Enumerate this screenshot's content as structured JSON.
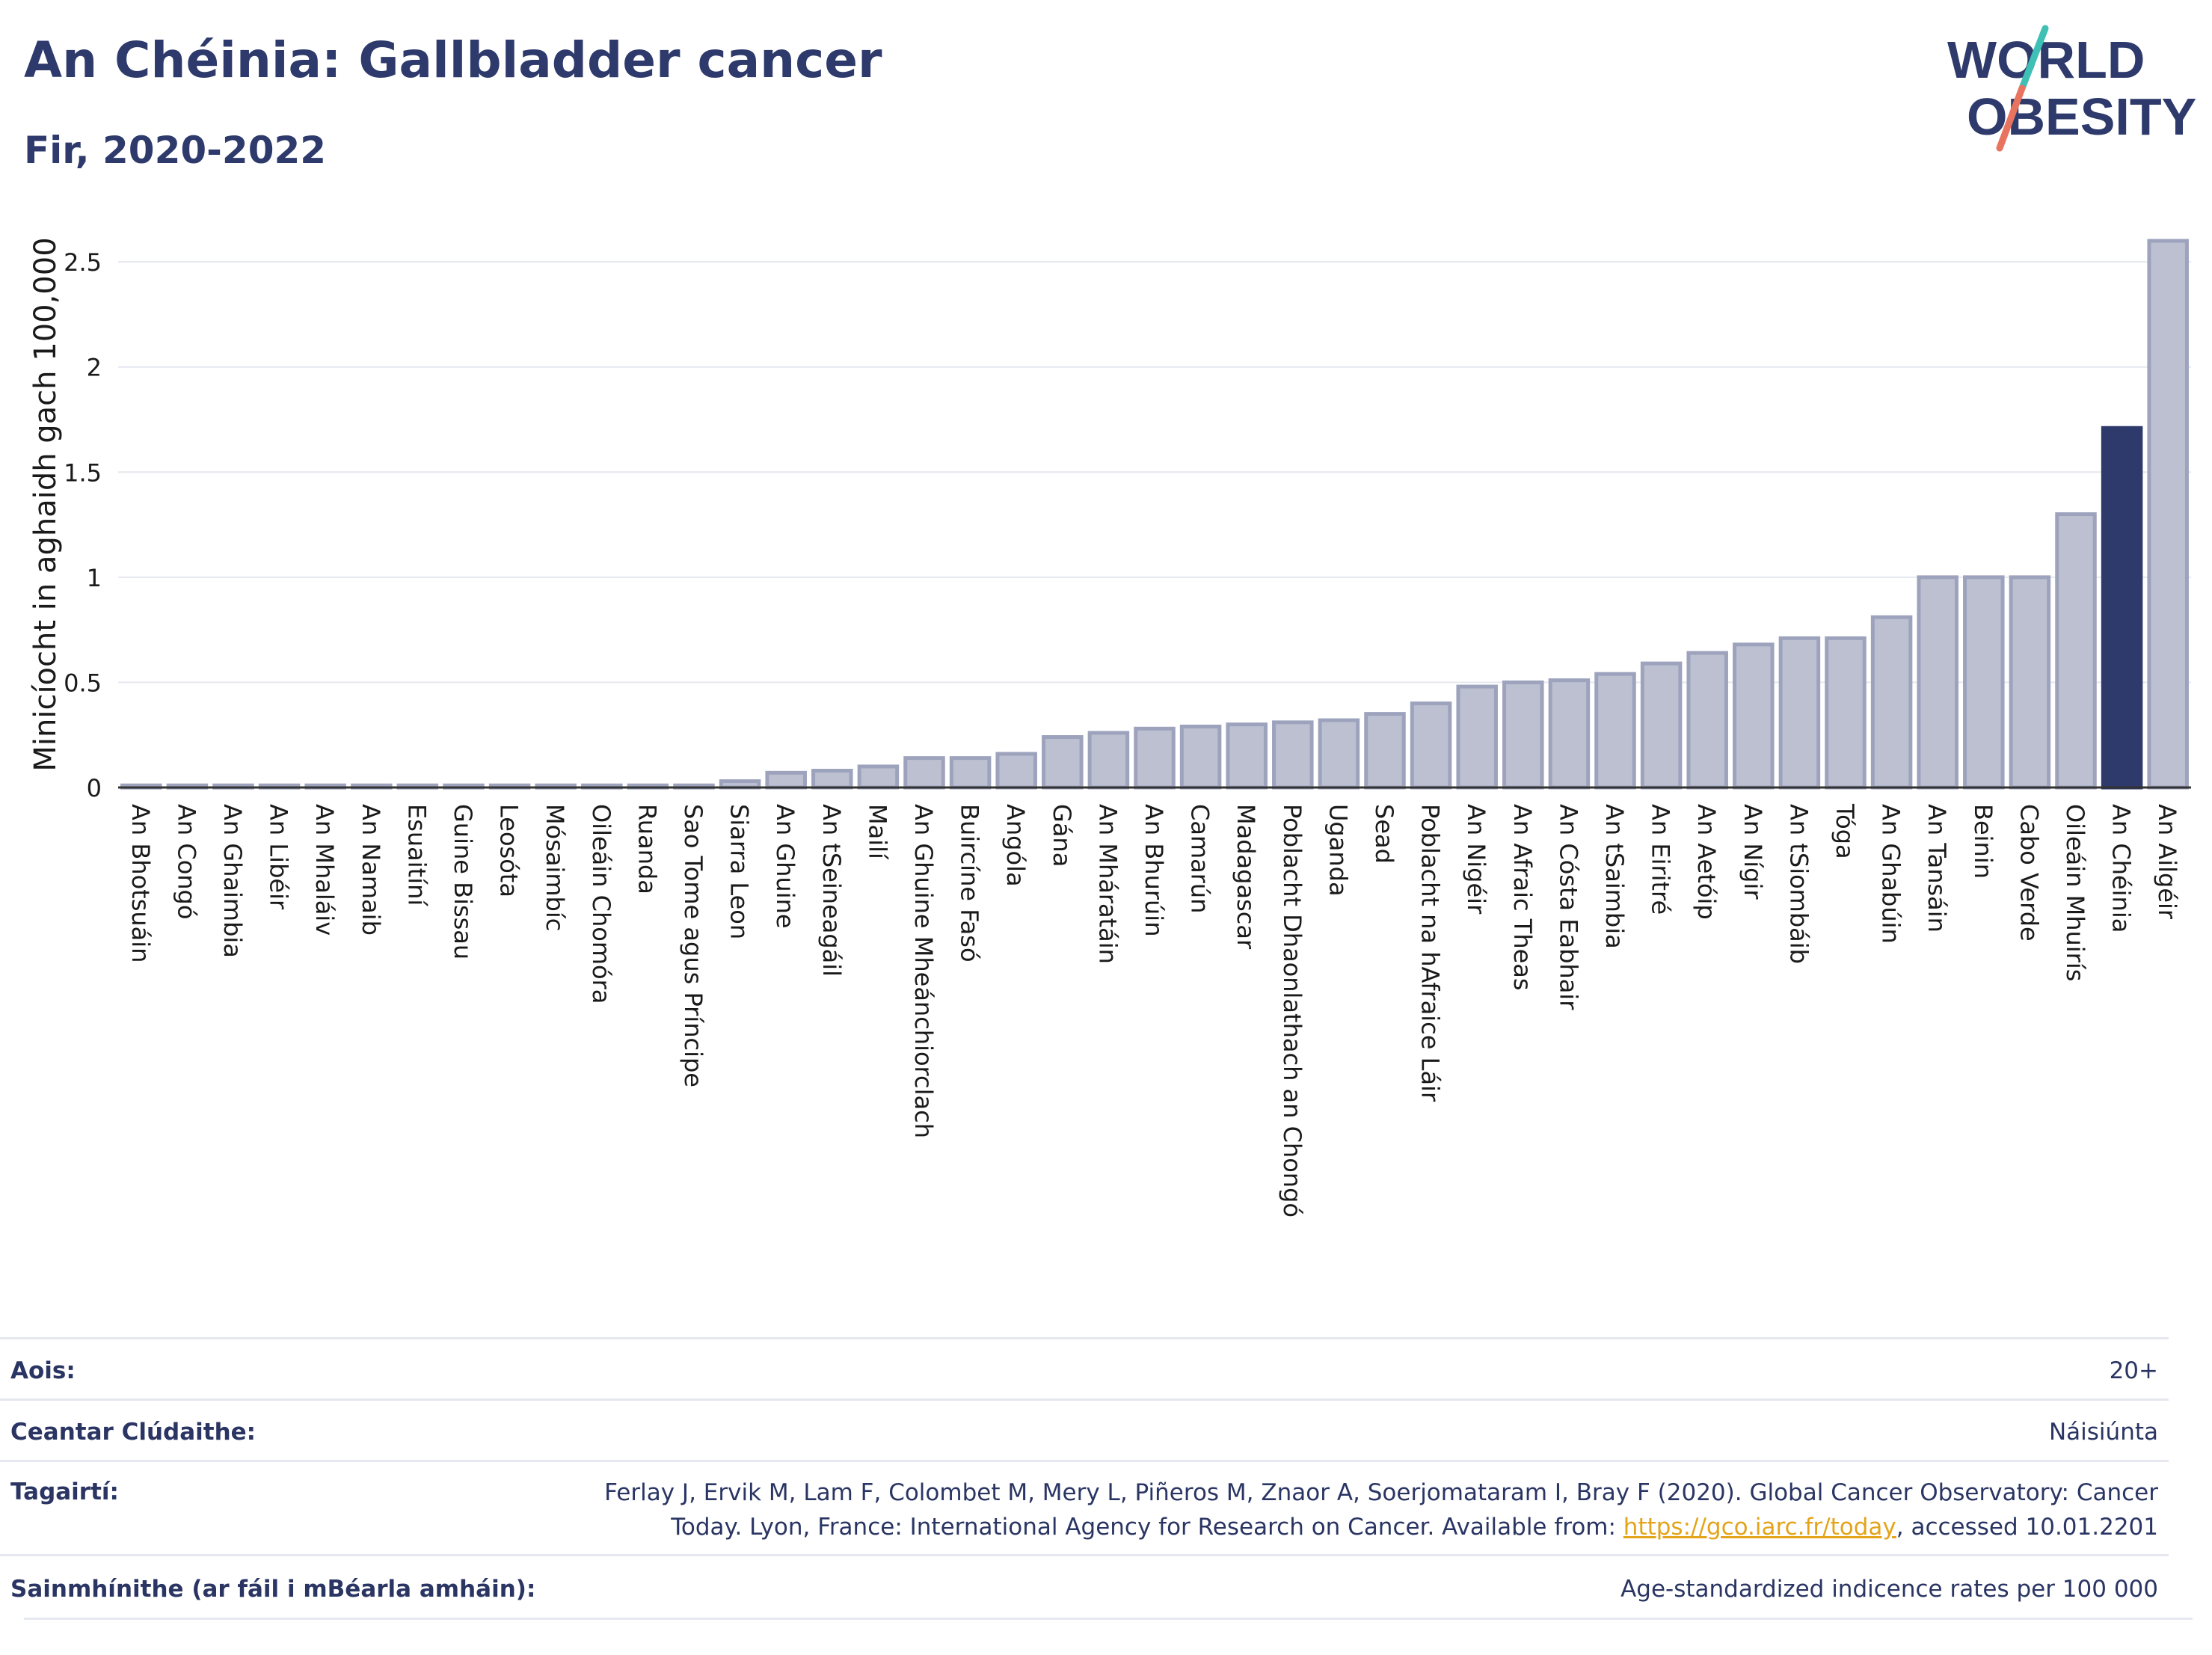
{
  "title": "An Chéinia: Gallbladder cancer",
  "subtitle": "Fir, 2020-2022",
  "logo": {
    "line1": "WORLD",
    "line2": "OBESITY",
    "colors": {
      "text": "#2d3a6b",
      "slash_top": "#3fc0b5",
      "slash_bottom": "#e8735e"
    }
  },
  "colors": {
    "bar_fill": "#bcc0d1",
    "bar_stroke": "#9ea3bd",
    "highlight": "#2d3a6b",
    "grid": "#e6e8f0",
    "axis": "#333333"
  },
  "chart_data": {
    "type": "bar",
    "ylabel": "Minicíocht in aghaidh gach 100,000",
    "xlabel": "",
    "ylim": [
      0,
      2.65
    ],
    "yticks": [
      0,
      0.5,
      1,
      1.5,
      2,
      2.5
    ],
    "ytick_labels": [
      "0",
      "0.5",
      "1",
      "1.5",
      "2",
      "2.5"
    ],
    "grid": true,
    "highlight": "An Chéinia",
    "categories": [
      "An Bhotsuáin",
      "An Congó",
      "An Ghaimbia",
      "An Libéir",
      "An Mhaláiv",
      "An Namaib",
      "Esuaitíní",
      "Guine Bissau",
      "Leosóta",
      "Mósaimbíc",
      "Oileáin Chomóra",
      "Ruanda",
      "Sao Tome agus Príncipe",
      "Siarra Leon",
      "An Ghuine",
      "An tSeineagáil",
      "Mailí",
      "An Ghuine Mheánchiorclach",
      "Buircíne Fasó",
      "Angóla",
      "Gána",
      "An Mháratáin",
      "An Bhurúin",
      "Camarún",
      "Madagascar",
      "Poblacht Dhaonlathach an Chongó",
      "Uganda",
      "Sead",
      "Poblacht na hAfraice Láir",
      "An Nigéir",
      "An Afraic Theas",
      "An Cósta Eabhair",
      "An tSaimbia",
      "An Eiritré",
      "An Aetóip",
      "An Nígir",
      "An tSiombáib",
      "Tóga",
      "An Ghabúin",
      "An Tansáin",
      "Beinin",
      "Cabo Verde",
      "Oileáin Mhuirís",
      "An Chéinia",
      "An Ailgéir"
    ],
    "values": [
      0.01,
      0.01,
      0.01,
      0.01,
      0.01,
      0.01,
      0.01,
      0.01,
      0.01,
      0.01,
      0.01,
      0.01,
      0.01,
      0.03,
      0.07,
      0.08,
      0.1,
      0.14,
      0.14,
      0.16,
      0.24,
      0.26,
      0.28,
      0.29,
      0.3,
      0.31,
      0.32,
      0.35,
      0.4,
      0.48,
      0.5,
      0.51,
      0.54,
      0.59,
      0.64,
      0.68,
      0.71,
      0.71,
      0.81,
      1.0,
      1.0,
      1.0,
      1.3,
      1.71,
      2.6
    ]
  },
  "meta": {
    "age_label": "Aois:",
    "age_value": "20+",
    "coverage_label": "Ceantar Clúdaithe:",
    "coverage_value": "Náisiúnta",
    "refs_label": "Tagairtí:",
    "refs_text_1": "Ferlay J, Ervik M, Lam F, Colombet M, Mery L, Piñeros M, Znaor A, Soerjomataram I, Bray F (2020). Global Cancer Observatory: Cancer Today. Lyon, France: International Agency for Research on Cancer. Available from: ",
    "refs_link": "https://gco.iarc.fr/today",
    "refs_text_2": ", accessed 10.01.2201",
    "defs_label": "Sainmhínithe (ar fáil i mBéarla amháin):",
    "defs_value": "Age-standardized indicence rates per 100 000"
  }
}
